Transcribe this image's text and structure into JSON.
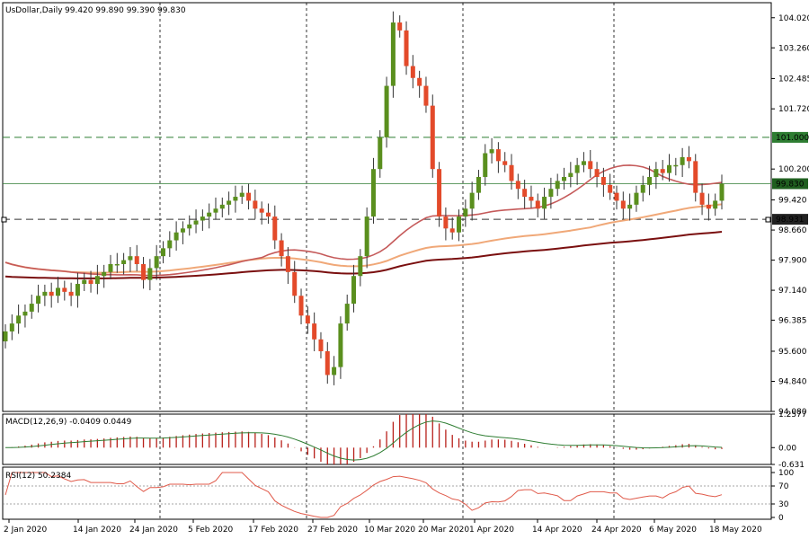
{
  "main": {
    "symbol_label": "UsDollar,Daily",
    "ohlc_label": "99.420 99.890 99.390 99.830",
    "price_ticks": [
      "104.020",
      "103.260",
      "102.485",
      "101.720",
      "100.200",
      "99.420",
      "98.660",
      "97.900",
      "97.140",
      "96.385",
      "95.600",
      "94.840",
      "94.080"
    ],
    "tags": {
      "level_high": "101.000",
      "last_price": "99.830",
      "level_low": "98.931"
    }
  },
  "macd": {
    "label": "MACD(12,26,9) -0.0409 0.0449",
    "ticks": [
      "1.2577",
      "0.00",
      "-0.631"
    ]
  },
  "rsi": {
    "label": "RSI(12) 50.2384",
    "ticks": [
      "100",
      "70",
      "30",
      "0"
    ]
  },
  "x_axis": {
    "dates": [
      "2 Jan 2020",
      "14 Jan 2020",
      "24 Jan 2020",
      "5 Feb 2020",
      "17 Feb 2020",
      "27 Feb 2020",
      "10 Mar 2020",
      "20 Mar 2020",
      "1 Apr 2020",
      "14 Apr 2020",
      "24 Apr 2020",
      "6 May 2020",
      "18 May 2020"
    ]
  },
  "colors": {
    "bull": "#5a8f1e",
    "bear": "#e34a2a",
    "ma_fast": "#c55a5a",
    "ma_mid": "#f0a878",
    "ma_slow": "#7a0f0f",
    "macd_hist": "#b8201a",
    "macd_signal": "#2e7d32",
    "rsi_line": "#e05a4a",
    "level_line": "#2e7d32"
  },
  "chart_data": {
    "type": "candlestick",
    "close_series": [
      96.1,
      96.3,
      96.5,
      96.6,
      96.8,
      97.0,
      97.1,
      97.0,
      97.2,
      97.1,
      97.0,
      97.3,
      97.4,
      97.3,
      97.5,
      97.6,
      97.8,
      97.8,
      97.9,
      98.0,
      97.8,
      97.4,
      97.7,
      98.0,
      98.2,
      98.4,
      98.6,
      98.7,
      98.8,
      98.9,
      99.0,
      99.1,
      99.2,
      99.3,
      99.4,
      99.5,
      99.6,
      99.4,
      99.2,
      99.1,
      99.0,
      98.4,
      98.0,
      97.6,
      97.0,
      96.5,
      96.3,
      95.9,
      95.6,
      95.0,
      95.2,
      96.3,
      96.8,
      97.5,
      98.0,
      99.0,
      100.2,
      101.0,
      102.3,
      103.9,
      103.7,
      102.8,
      102.5,
      102.3,
      101.8,
      100.2,
      99.0,
      98.7,
      98.6,
      99.0,
      99.2,
      99.6,
      100.0,
      100.6,
      100.7,
      100.4,
      100.3,
      99.9,
      99.7,
      99.5,
      99.4,
      99.2,
      99.5,
      99.7,
      99.9,
      100.0,
      100.1,
      100.3,
      100.4,
      100.2,
      100.0,
      99.8,
      99.6,
      99.4,
      99.2,
      99.3,
      99.6,
      99.8,
      100.0,
      100.2,
      100.1,
      100.3,
      100.3,
      100.5,
      100.4,
      99.6,
      99.3,
      99.2,
      99.4,
      99.83
    ],
    "levels": [
      101.0,
      98.931
    ],
    "last_price": 99.83,
    "x_dates": [
      "2 Jan 2020",
      "14 Jan 2020",
      "24 Jan 2020",
      "5 Feb 2020",
      "17 Feb 2020",
      "27 Feb 2020",
      "10 Mar 2020",
      "20 Mar 2020",
      "1 Apr 2020",
      "14 Apr 2020",
      "24 Apr 2020",
      "6 May 2020",
      "18 May 2020"
    ],
    "y_range": [
      94.08,
      104.4
    ],
    "macd_range": [
      -0.631,
      1.2577
    ],
    "rsi_range": [
      0,
      100
    ],
    "rsi_levels": [
      70,
      30
    ]
  }
}
